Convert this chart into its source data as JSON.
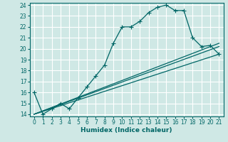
{
  "xlabel": "Humidex (Indice chaleur)",
  "bg_color": "#cfe8e5",
  "grid_color": "#ffffff",
  "line_color": "#006666",
  "xlim": [
    -0.5,
    21.5
  ],
  "ylim": [
    13.8,
    24.2
  ],
  "xticks": [
    0,
    1,
    2,
    3,
    4,
    5,
    6,
    7,
    8,
    9,
    10,
    11,
    12,
    13,
    14,
    15,
    16,
    17,
    18,
    19,
    20,
    21
  ],
  "yticks": [
    14,
    15,
    16,
    17,
    18,
    19,
    20,
    21,
    22,
    23,
    24
  ],
  "series": [
    {
      "x": [
        0,
        1,
        2,
        3,
        4,
        5,
        6,
        7,
        8,
        9,
        10,
        11,
        12,
        13,
        14,
        15,
        16,
        17,
        18,
        19,
        20,
        21
      ],
      "y": [
        16,
        14,
        14.5,
        15,
        14.5,
        15.5,
        16.5,
        17.5,
        18.5,
        20.5,
        22,
        22,
        22.5,
        23.3,
        23.8,
        24,
        23.5,
        23.5,
        21,
        20.2,
        20.3,
        19.5
      ],
      "has_marker": true
    },
    {
      "x": [
        0,
        21
      ],
      "y": [
        14,
        19.5
      ],
      "has_marker": false
    },
    {
      "x": [
        0,
        21
      ],
      "y": [
        14,
        20.2
      ],
      "has_marker": false
    },
    {
      "x": [
        0,
        21
      ],
      "y": [
        14,
        20.5
      ],
      "has_marker": false
    }
  ],
  "marker": "+",
  "markersize": 4,
  "markeredgewidth": 0.8,
  "linewidth": 0.9,
  "tick_fontsize": 5.5,
  "xlabel_fontsize": 6.5
}
